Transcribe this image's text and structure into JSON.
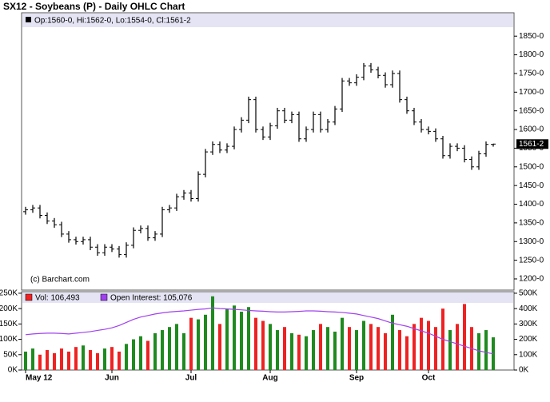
{
  "chart_data": [
    {
      "type": "ohlc",
      "title": "SX12 - Soybeans (P) - Daily OHLC Chart",
      "header": "Op:1560-0, Hi:1562-0, Lo:1554-0, Cl:1561-2",
      "credit": "(c) Barchart.com",
      "last_label": "1561-2",
      "color": "#000000",
      "categories": [
        "May 12",
        null,
        null,
        null,
        null,
        null,
        null,
        null,
        null,
        null,
        null,
        null,
        "Jun",
        null,
        null,
        null,
        null,
        null,
        null,
        null,
        null,
        null,
        null,
        "Jul",
        null,
        null,
        null,
        null,
        null,
        null,
        null,
        null,
        null,
        null,
        "Aug",
        null,
        null,
        null,
        null,
        null,
        null,
        null,
        null,
        null,
        null,
        null,
        "Sep",
        null,
        null,
        null,
        null,
        null,
        null,
        null,
        null,
        null,
        "Oct",
        null,
        null,
        null,
        null,
        null,
        null,
        null,
        null,
        null
      ],
      "open": [
        1380,
        1385,
        1390,
        1370,
        1355,
        1345,
        1320,
        1305,
        1300,
        1305,
        1285,
        1270,
        1285,
        1280,
        1265,
        1290,
        1330,
        1335,
        1310,
        1320,
        1385,
        1390,
        1420,
        1430,
        1415,
        1480,
        1540,
        1560,
        1545,
        1555,
        1600,
        1625,
        1680,
        1600,
        1580,
        1610,
        1650,
        1625,
        1640,
        1575,
        1600,
        1640,
        1600,
        1620,
        1655,
        1730,
        1725,
        1740,
        1770,
        1760,
        1745,
        1720,
        1750,
        1680,
        1650,
        1620,
        1600,
        1595,
        1575,
        1530,
        1555,
        1550,
        1520,
        1500,
        1535,
        1560
      ],
      "high": [
        1393,
        1398,
        1398,
        1378,
        1363,
        1353,
        1328,
        1313,
        1313,
        1313,
        1293,
        1293,
        1293,
        1288,
        1298,
        1338,
        1343,
        1343,
        1328,
        1393,
        1398,
        1428,
        1438,
        1438,
        1488,
        1548,
        1568,
        1568,
        1563,
        1608,
        1633,
        1688,
        1688,
        1608,
        1618,
        1658,
        1658,
        1648,
        1648,
        1608,
        1648,
        1648,
        1628,
        1663,
        1738,
        1738,
        1748,
        1778,
        1778,
        1768,
        1753,
        1758,
        1758,
        1688,
        1658,
        1628,
        1608,
        1603,
        1583,
        1563,
        1563,
        1558,
        1528,
        1543,
        1568,
        1562
      ],
      "low": [
        1372,
        1377,
        1362,
        1347,
        1337,
        1312,
        1297,
        1292,
        1292,
        1277,
        1262,
        1262,
        1272,
        1257,
        1257,
        1282,
        1322,
        1302,
        1302,
        1312,
        1377,
        1382,
        1412,
        1407,
        1407,
        1472,
        1532,
        1537,
        1537,
        1547,
        1592,
        1617,
        1592,
        1572,
        1572,
        1602,
        1617,
        1617,
        1567,
        1567,
        1592,
        1592,
        1592,
        1612,
        1647,
        1717,
        1717,
        1732,
        1752,
        1737,
        1712,
        1712,
        1672,
        1642,
        1612,
        1592,
        1587,
        1567,
        1522,
        1522,
        1542,
        1512,
        1492,
        1492,
        1527,
        1554
      ],
      "close": [
        1385,
        1390,
        1370,
        1355,
        1345,
        1320,
        1305,
        1300,
        1305,
        1285,
        1270,
        1285,
        1280,
        1265,
        1290,
        1330,
        1335,
        1310,
        1320,
        1385,
        1390,
        1420,
        1430,
        1415,
        1480,
        1540,
        1560,
        1545,
        1555,
        1600,
        1625,
        1680,
        1600,
        1580,
        1610,
        1650,
        1625,
        1640,
        1575,
        1600,
        1640,
        1600,
        1620,
        1655,
        1730,
        1725,
        1740,
        1770,
        1760,
        1745,
        1720,
        1750,
        1680,
        1650,
        1620,
        1600,
        1595,
        1575,
        1530,
        1555,
        1550,
        1520,
        1500,
        1535,
        1560,
        1561
      ],
      "ylim": [
        1170,
        1874
      ],
      "yticks": [
        {
          "value": 1200,
          "label": "1200-0"
        },
        {
          "value": 1250,
          "label": "1250-0"
        },
        {
          "value": 1300,
          "label": "1300-0"
        },
        {
          "value": 1350,
          "label": "1350-0"
        },
        {
          "value": 1400,
          "label": "1400-0"
        },
        {
          "value": 1450,
          "label": "1450-0"
        },
        {
          "value": 1500,
          "label": "1500-0"
        },
        {
          "value": 1550,
          "label": "1550-0"
        },
        {
          "value": 1600,
          "label": "1600-0"
        },
        {
          "value": 1650,
          "label": "1650-0"
        },
        {
          "value": 1700,
          "label": "1700-0"
        },
        {
          "value": 1750,
          "label": "1750-0"
        },
        {
          "value": 1800,
          "label": "1800-0"
        },
        {
          "value": 1850,
          "label": "1850-0"
        }
      ]
    },
    {
      "type": "bar",
      "up_color": "#1f8a1f",
      "down_color": "#ee2222",
      "series": [
        {
          "name": "Vol: 106,493",
          "color": "#ee2222",
          "values": [
            60000,
            70000,
            50000,
            65000,
            55000,
            70000,
            60000,
            75000,
            80000,
            65000,
            55000,
            70000,
            75000,
            60000,
            85000,
            100000,
            110000,
            95000,
            120000,
            130000,
            140000,
            150000,
            120000,
            170000,
            165000,
            180000,
            240000,
            150000,
            200000,
            210000,
            190000,
            205000,
            170000,
            160000,
            150000,
            130000,
            140000,
            120000,
            115000,
            110000,
            130000,
            150000,
            140000,
            125000,
            170000,
            140000,
            130000,
            160000,
            150000,
            140000,
            120000,
            180000,
            130000,
            110000,
            150000,
            170000,
            160000,
            140000,
            200000,
            130000,
            150000,
            215000,
            140000,
            120000,
            130000,
            106493
          ]
        },
        {
          "name": "Open Interest: 105,076",
          "color": "#a040f0",
          "axis": "y2",
          "values": [
            230000,
            235000,
            238000,
            240000,
            240000,
            238000,
            235000,
            240000,
            245000,
            250000,
            258000,
            265000,
            275000,
            290000,
            310000,
            330000,
            345000,
            355000,
            365000,
            372000,
            378000,
            382000,
            385000,
            390000,
            395000,
            398000,
            405000,
            400000,
            398000,
            395000,
            392000,
            388000,
            385000,
            383000,
            380000,
            378000,
            378000,
            380000,
            382000,
            385000,
            385000,
            383000,
            380000,
            378000,
            375000,
            370000,
            365000,
            355000,
            345000,
            335000,
            320000,
            305000,
            295000,
            285000,
            270000,
            255000,
            240000,
            220000,
            200000,
            185000,
            170000,
            155000,
            140000,
            125000,
            115000,
            105076
          ]
        }
      ],
      "ylim": [
        0,
        255000
      ],
      "yticks": [
        {
          "value": 0,
          "label": "0K"
        },
        {
          "value": 50000,
          "label": "50K"
        },
        {
          "value": 100000,
          "label": "100K"
        },
        {
          "value": 150000,
          "label": "150K"
        },
        {
          "value": 200000,
          "label": "200K"
        },
        {
          "value": 250000,
          "label": "250K"
        }
      ],
      "y2lim": [
        0,
        510000
      ],
      "y2ticks": [
        {
          "value": 0,
          "label": "0K"
        },
        {
          "value": 100000,
          "label": "100K"
        },
        {
          "value": 200000,
          "label": "200K"
        },
        {
          "value": 300000,
          "label": "300K"
        },
        {
          "value": 400000,
          "label": "400K"
        },
        {
          "value": 500000,
          "label": "500K"
        }
      ]
    }
  ]
}
